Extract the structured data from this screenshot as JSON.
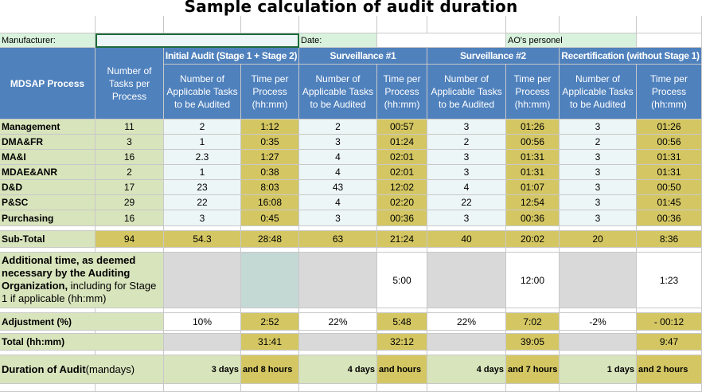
{
  "title": "Sample calculation of audit duration",
  "info_row": {
    "manufacturer_label": "Manufacturer:",
    "manufacturer_value": "",
    "date_label": "Date:",
    "date_value": "",
    "ao_label": "AO's personel",
    "ao_value": ""
  },
  "header": {
    "process_col": "MDSAP Process",
    "num_tasks_col": "Number of Tasks per Process",
    "groups": [
      "Initial Audit (Stage 1 + Stage 2)",
      "Surveillance #1",
      "Surveillance #2",
      "Recertification (without Stage 1)"
    ],
    "sub_tasks": "Number of Applicable Tasks to be Audited",
    "sub_time": "Time per Process (hh:mm)"
  },
  "rows": [
    {
      "process": "Management",
      "tasks": "11",
      "ia_n": "2",
      "ia_t": "1:12",
      "s1_n": "2",
      "s1_t": "00:57",
      "s2_n": "3",
      "s2_t": "01:26",
      "rc_n": "3",
      "rc_t": "01:26"
    },
    {
      "process": "DMA&FR",
      "tasks": "3",
      "ia_n": "1",
      "ia_t": "0:35",
      "s1_n": "3",
      "s1_t": "01:24",
      "s2_n": "2",
      "s2_t": "00:56",
      "rc_n": "2",
      "rc_t": "00:56"
    },
    {
      "process": "MA&I",
      "tasks": "16",
      "ia_n": "2.3",
      "ia_t": "1:27",
      "s1_n": "4",
      "s1_t": "02:01",
      "s2_n": "3",
      "s2_t": "01:31",
      "rc_n": "3",
      "rc_t": "01:31"
    },
    {
      "process": "MDAE&ANR",
      "tasks": "2",
      "ia_n": "1",
      "ia_t": "0:38",
      "s1_n": "4",
      "s1_t": "02:01",
      "s2_n": "3",
      "s2_t": "01:31",
      "rc_n": "3",
      "rc_t": "01:31"
    },
    {
      "process": "D&D",
      "tasks": "17",
      "ia_n": "23",
      "ia_t": "8:03",
      "s1_n": "43",
      "s1_t": "12:02",
      "s2_n": "4",
      "s2_t": "01:07",
      "rc_n": "3",
      "rc_t": "00:50"
    },
    {
      "process": "P&SC",
      "tasks": "29",
      "ia_n": "22",
      "ia_t": "16:08",
      "s1_n": "4",
      "s1_t": "02:20",
      "s2_n": "22",
      "s2_t": "12:54",
      "rc_n": "3",
      "rc_t": "01:45"
    },
    {
      "process": "Purchasing",
      "tasks": "16",
      "ia_n": "3",
      "ia_t": "0:45",
      "s1_n": "3",
      "s1_t": "00:36",
      "s2_n": "3",
      "s2_t": "00:36",
      "rc_n": "3",
      "rc_t": "00:36"
    }
  ],
  "subtotal": {
    "label": "Sub-Total",
    "tasks": "94",
    "ia_n": "54.3",
    "ia_t": "28:48",
    "s1_n": "63",
    "s1_t": "21:24",
    "s2_n": "40",
    "s2_t": "20:02",
    "rc_n": "20",
    "rc_t": "8:36"
  },
  "additional": {
    "label_bold": "Additional time, as deemed necessary by the Auditing Organization,",
    "label_rest": " including for Stage 1 if applicable (hh:mm)",
    "s1_t": "5:00",
    "s2_t": "12:00",
    "rc_t": "1:23"
  },
  "adjustment": {
    "label": "Adjustment (%)",
    "ia_n": "10%",
    "ia_t": "2:52",
    "s1_n": "22%",
    "s1_t": "5:48",
    "s2_n": "22%",
    "s2_t": "7:02",
    "rc_n": "-2%",
    "rc_t": "- 00:12"
  },
  "total": {
    "label": "Total (hh:mm)",
    "ia_t": "31:41",
    "s1_t": "32:12",
    "s2_t": "39:05",
    "rc_t": "9:47"
  },
  "duration": {
    "label_bold": "Duration of Audit",
    "label_rest": " (mandays)",
    "ia_a": "3 days",
    "ia_b": "and 8 hours",
    "s1_a": "4 days",
    "s1_b": "and  hours",
    "s2_a": "4 days",
    "s2_b": "and 7 hours",
    "rc_a": "1 days",
    "rc_b": "and 2 hours"
  },
  "colors": {
    "header_blue": "#4f81bd",
    "cream": "#d8e4bc",
    "gold": "#d4c763",
    "ice": "#edf6f6",
    "grey": "#d9d9d9",
    "selected_border": "#1e6b3a"
  }
}
